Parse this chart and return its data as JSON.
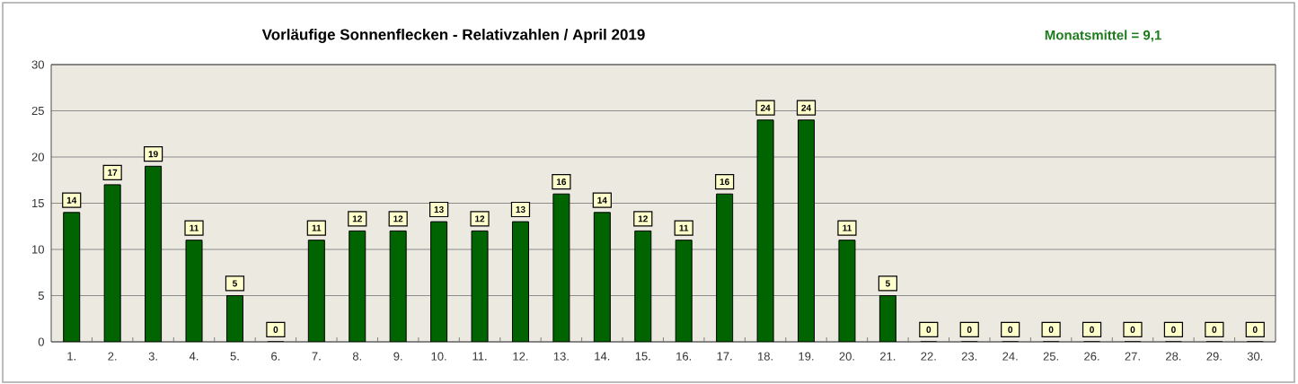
{
  "chart_data": {
    "type": "bar",
    "title": "Vorläufige Sonnenflecken - Relativzahlen  /  April 2019",
    "annotations": [
      "Monatsmittel = 9,1"
    ],
    "categories": [
      "1.",
      "2.",
      "3.",
      "4.",
      "5.",
      "6.",
      "7.",
      "8.",
      "9.",
      "10.",
      "11.",
      "12.",
      "13.",
      "14.",
      "15.",
      "16.",
      "17.",
      "18.",
      "19.",
      "20.",
      "21.",
      "22.",
      "23.",
      "24.",
      "25.",
      "26.",
      "27.",
      "28.",
      "29.",
      "30."
    ],
    "values": [
      14,
      17,
      19,
      11,
      5,
      0,
      11,
      12,
      12,
      13,
      12,
      13,
      16,
      14,
      12,
      11,
      16,
      24,
      24,
      11,
      5,
      0,
      0,
      0,
      0,
      0,
      0,
      0,
      0,
      0
    ],
    "color": "#006400",
    "ylim": [
      0,
      30
    ],
    "yticks": [
      0,
      5,
      10,
      15,
      20,
      25,
      30
    ],
    "grid": "y",
    "data_labels": true
  }
}
